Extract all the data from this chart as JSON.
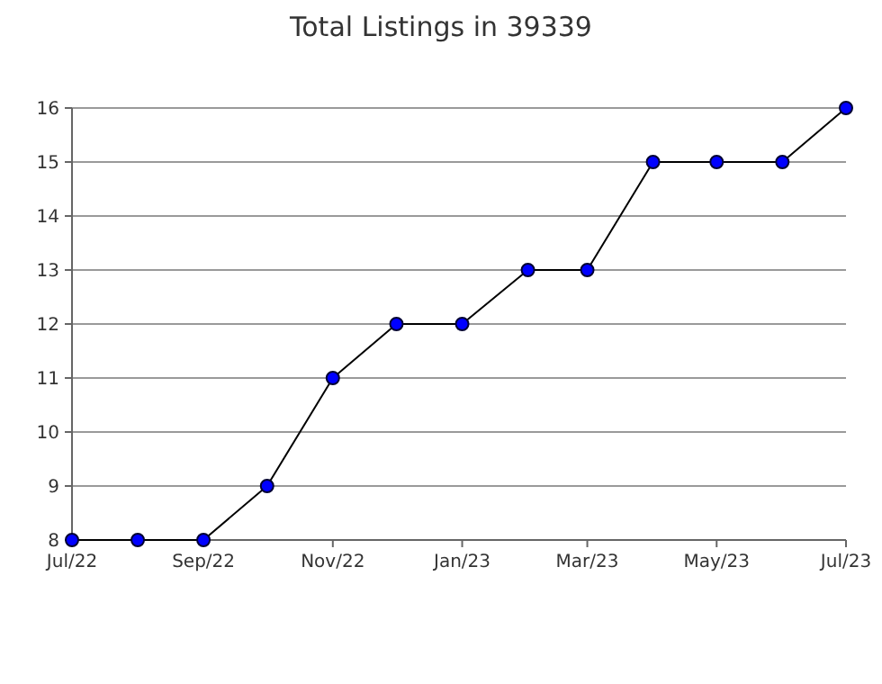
{
  "chart_data": {
    "type": "line",
    "title": "Total Listings in 39339",
    "x": [
      "2022-07",
      "2022-08",
      "2022-09",
      "2022-10",
      "2022-11",
      "2022-12",
      "2023-01",
      "2023-02",
      "2023-03",
      "2023-04",
      "2023-05",
      "2023-06",
      "2023-07"
    ],
    "series": [
      {
        "color": "#0000ff",
        "values": [
          8,
          8,
          8,
          9,
          11,
          12,
          12,
          13,
          13,
          15,
          15,
          15,
          16
        ]
      }
    ],
    "xlim": [
      "2022-07",
      "2023-07"
    ],
    "xticks": [
      {
        "value": "2022-07",
        "label": "Jul/22"
      },
      {
        "value": "2022-09",
        "label": "Sep/22"
      },
      {
        "value": "2022-11",
        "label": "Nov/22"
      },
      {
        "value": "2023-01",
        "label": "Jan/23"
      },
      {
        "value": "2023-03",
        "label": "Mar/23"
      },
      {
        "value": "2023-05",
        "label": "May/23"
      },
      {
        "value": "2023-07",
        "label": "Jul/23"
      }
    ],
    "ylim": [
      8,
      16
    ],
    "yticks": [
      8,
      9,
      10,
      11,
      12,
      13,
      14,
      15,
      16
    ],
    "grid": "y",
    "marker": "circle",
    "line_style": "solid"
  }
}
